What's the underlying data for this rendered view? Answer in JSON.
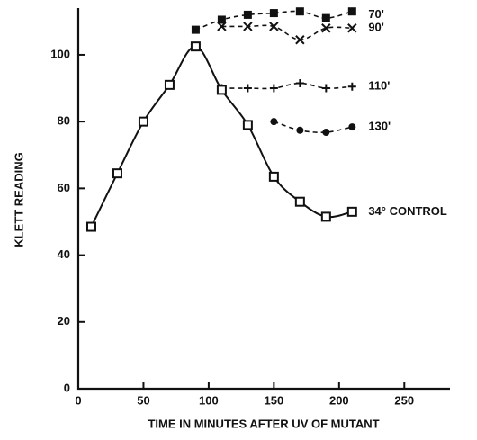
{
  "chart_data": {
    "type": "line",
    "x_label": "TIME IN MINUTES AFTER UV OF MUTANT",
    "y_label": "KLETT READING",
    "x": [
      10,
      30,
      50,
      70,
      90,
      110,
      130,
      150,
      170,
      190,
      210
    ],
    "series": [
      {
        "name": "70'",
        "marker": "square-filled",
        "dash": true,
        "color": "#111",
        "values": [
          null,
          null,
          null,
          null,
          107.5,
          110.5,
          112,
          112.5,
          113,
          111,
          113
        ]
      },
      {
        "name": "90'",
        "marker": "x",
        "dash": true,
        "color": "#111",
        "values": [
          null,
          null,
          null,
          null,
          null,
          108.5,
          108.5,
          108.5,
          104.5,
          108,
          108
        ]
      },
      {
        "name": "110'",
        "marker": "plus",
        "dash": true,
        "color": "#111",
        "values": [
          null,
          null,
          null,
          null,
          null,
          90,
          90,
          90,
          91.5,
          90,
          90.5
        ]
      },
      {
        "name": "130'",
        "marker": "circle",
        "dash": true,
        "color": "#111",
        "values": [
          null,
          null,
          null,
          null,
          null,
          null,
          null,
          80,
          77.4,
          76.8,
          78.4
        ]
      },
      {
        "name": "34° CONTROL",
        "marker": "square-open",
        "dash": false,
        "color": "#111",
        "values": [
          48.5,
          64.5,
          80,
          91,
          102.5,
          89.5,
          79,
          63.5,
          56,
          51.5,
          53
        ]
      }
    ],
    "xlim": [
      0,
      285
    ],
    "xticks": [
      0,
      50,
      100,
      150,
      200,
      250
    ],
    "ylim": [
      0,
      114
    ],
    "yticks": [
      0,
      20,
      40,
      60,
      80,
      100
    ]
  }
}
